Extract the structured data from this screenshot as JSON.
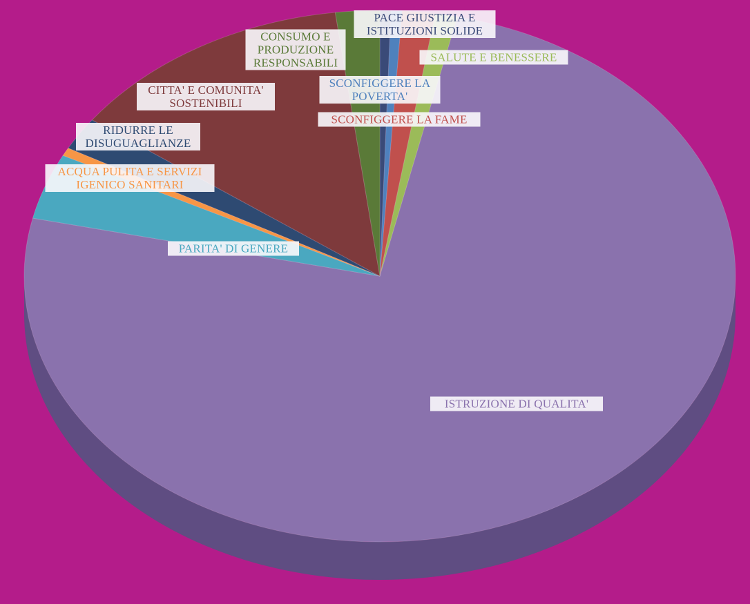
{
  "chart_data": {
    "type": "pie",
    "categories": [
      "PACE GIUSTIZIA E ISTITUZIONI SOLIDE",
      "SCONFIGGERE LA POVERTA'",
      "SCONFIGGERE LA FAME",
      "SALUTE E BENESSERE",
      "ISTRUZIONE DI QUALITA'",
      "PARITA' DI GENERE",
      "ACQUA PULITA E SERVIZI IGENICO SANITARI",
      "RIDURRE LE DISUGUAGLIANZE",
      "CITTA' E COMUNITA' SOSTENIBILI",
      "CONSUMO E PRODUZIONE RESPONSABILI"
    ],
    "values": [
      0.5,
      0.5,
      1.5,
      1,
      75,
      4,
      0.5,
      2,
      13,
      2
    ],
    "colors": [
      "#3a4a78",
      "#4f81bd",
      "#c0504d",
      "#9bbb59",
      "#8a72ad",
      "#4aa8c0",
      "#f79646",
      "#2e4a72",
      "#7e3a3c",
      "#5a7a38"
    ]
  }
}
